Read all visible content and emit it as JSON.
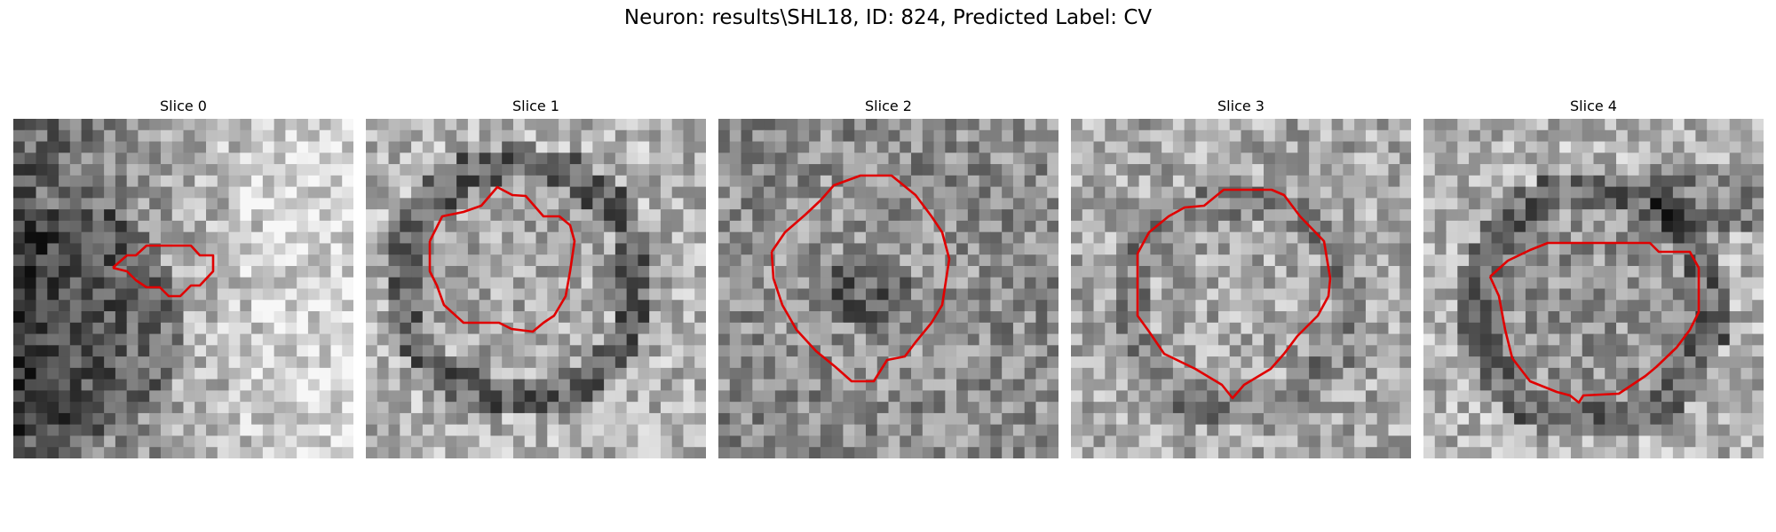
{
  "figure": {
    "title": "Neuron: results\\SHL18, ID: 824, Predicted Label: CV"
  },
  "panels": [
    {
      "title": "Slice 0"
    },
    {
      "title": "Slice 1"
    },
    {
      "title": "Slice 2"
    },
    {
      "title": "Slice 3"
    },
    {
      "title": "Slice 4"
    }
  ],
  "colors": {
    "contour": "#e00000",
    "background": "#ffffff"
  }
}
